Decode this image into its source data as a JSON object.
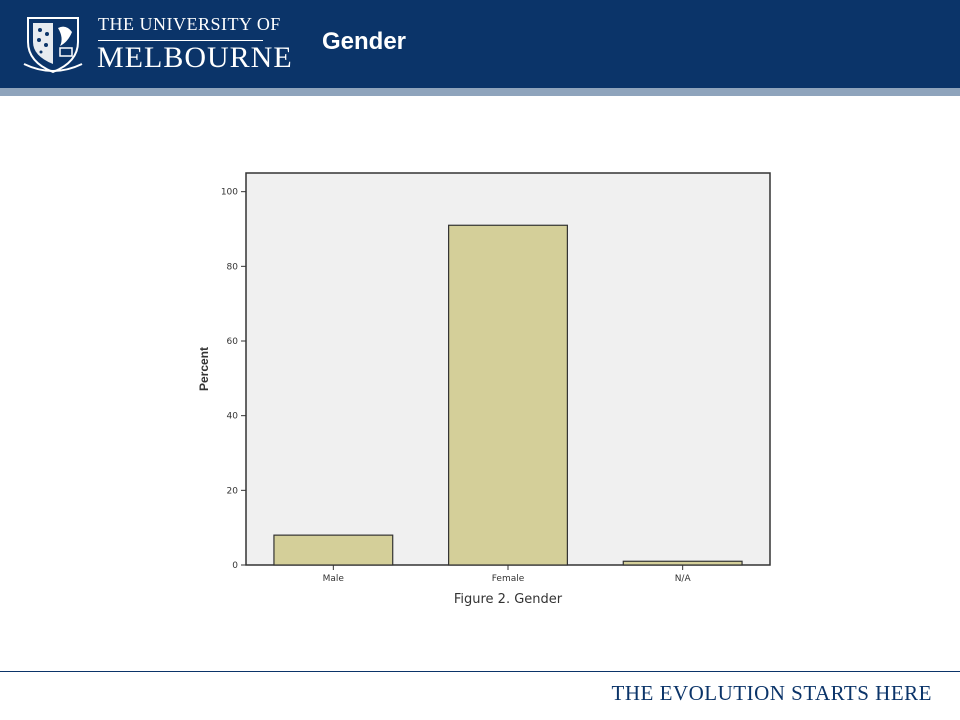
{
  "header": {
    "university_line1": "THE UNIVERSITY OF",
    "university_line2": "MELBOURNE",
    "slide_title": "Gender",
    "colors": {
      "navy": "#0b3469",
      "stripe": "#8fa4bc"
    }
  },
  "footer": {
    "tagline": "THE EVOLUTION STARTS HERE"
  },
  "chart_data": {
    "type": "bar",
    "categories": [
      "Male",
      "Female",
      "N/A"
    ],
    "values": [
      8,
      91,
      1
    ],
    "title": "",
    "xlabel": "Figure 2. Gender",
    "ylabel": "Percent",
    "ylim": [
      0,
      105
    ],
    "yticks": [
      0,
      20,
      40,
      60,
      80,
      100
    ],
    "grid": false,
    "colors": {
      "bar": "#d4cf99",
      "plot_bg": "#f0f0f0",
      "border": "#333333"
    }
  }
}
